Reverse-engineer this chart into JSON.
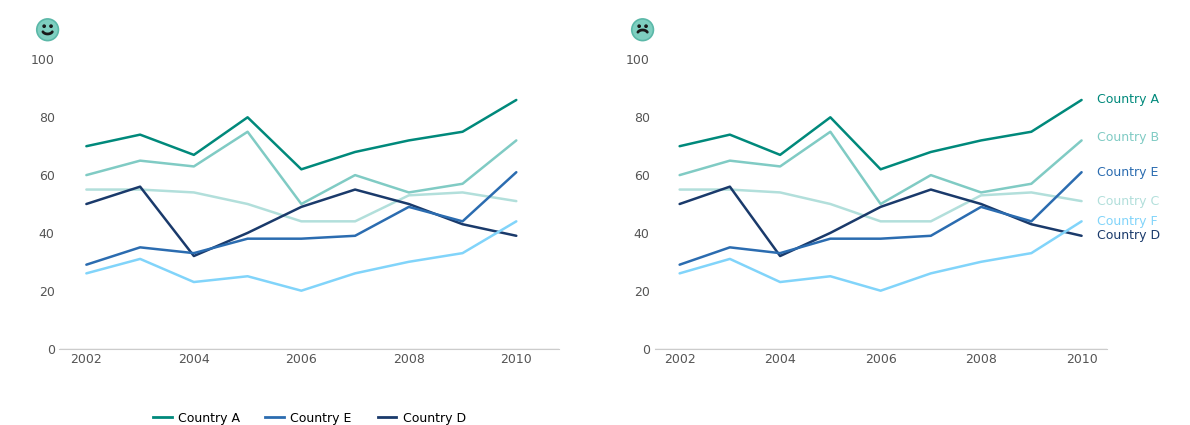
{
  "years": [
    2002,
    2003,
    2004,
    2005,
    2006,
    2007,
    2008,
    2009,
    2010
  ],
  "series": {
    "Country A": [
      70,
      74,
      67,
      80,
      62,
      68,
      72,
      75,
      86
    ],
    "Country B": [
      60,
      65,
      63,
      75,
      50,
      60,
      54,
      57,
      72
    ],
    "Country C": [
      55,
      55,
      54,
      50,
      44,
      44,
      53,
      54,
      51
    ],
    "Country D": [
      50,
      56,
      32,
      40,
      49,
      55,
      50,
      43,
      39
    ],
    "Country E": [
      29,
      35,
      33,
      38,
      38,
      39,
      49,
      44,
      61
    ],
    "Country F": [
      26,
      31,
      23,
      25,
      20,
      26,
      30,
      33,
      44
    ]
  },
  "colors": {
    "Country A": "#00897B",
    "Country B": "#80CBC4",
    "Country C": "#B2DFDB",
    "Country D": "#1A3A6B",
    "Country E": "#2B6CB0",
    "Country F": "#81D4FA"
  },
  "ylim": [
    0,
    100
  ],
  "yticks": [
    0,
    20,
    40,
    60,
    80,
    100
  ],
  "xticks": [
    2002,
    2004,
    2006,
    2008,
    2010
  ],
  "legend_order": [
    "Country A",
    "Country C",
    "Country E",
    "Country B",
    "Country D",
    "Country F"
  ],
  "direct_label_order": [
    "Country A",
    "Country B",
    "Country E",
    "Country C",
    "Country F",
    "Country D"
  ],
  "label_y_positions": {
    "Country A": 86,
    "Country B": 73,
    "Country E": 61,
    "Country C": 51,
    "Country F": 44,
    "Country D": 39
  },
  "face_color": "#7ECFC0",
  "face_outline": "#5BB8A8"
}
